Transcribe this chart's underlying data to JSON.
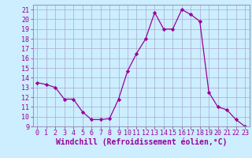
{
  "hours": [
    0,
    1,
    2,
    3,
    4,
    5,
    6,
    7,
    8,
    9,
    10,
    11,
    12,
    13,
    14,
    15,
    16,
    17,
    18,
    19,
    20,
    21,
    22,
    23
  ],
  "windchill": [
    13.5,
    13.3,
    13.0,
    11.8,
    11.8,
    10.5,
    9.7,
    9.7,
    9.8,
    11.8,
    14.7,
    16.5,
    18.0,
    20.7,
    19.0,
    19.0,
    21.0,
    20.5,
    19.8,
    12.5,
    11.0,
    10.7,
    9.7,
    9.0
  ],
  "xlabel": "Windchill (Refroidissement éolien,°C)",
  "ylim": [
    9,
    21.5
  ],
  "xlim": [
    -0.5,
    23.5
  ],
  "yticks": [
    9,
    10,
    11,
    12,
    13,
    14,
    15,
    16,
    17,
    18,
    19,
    20,
    21
  ],
  "xticks": [
    0,
    1,
    2,
    3,
    4,
    5,
    6,
    7,
    8,
    9,
    10,
    11,
    12,
    13,
    14,
    15,
    16,
    17,
    18,
    19,
    20,
    21,
    22,
    23
  ],
  "line_color": "#990099",
  "marker": "D",
  "marker_size": 2.2,
  "bg_color": "#cceeff",
  "grid_color": "#aaaacc",
  "xlabel_fontsize": 7,
  "tick_fontsize": 6,
  "border_color": "#9999bb"
}
